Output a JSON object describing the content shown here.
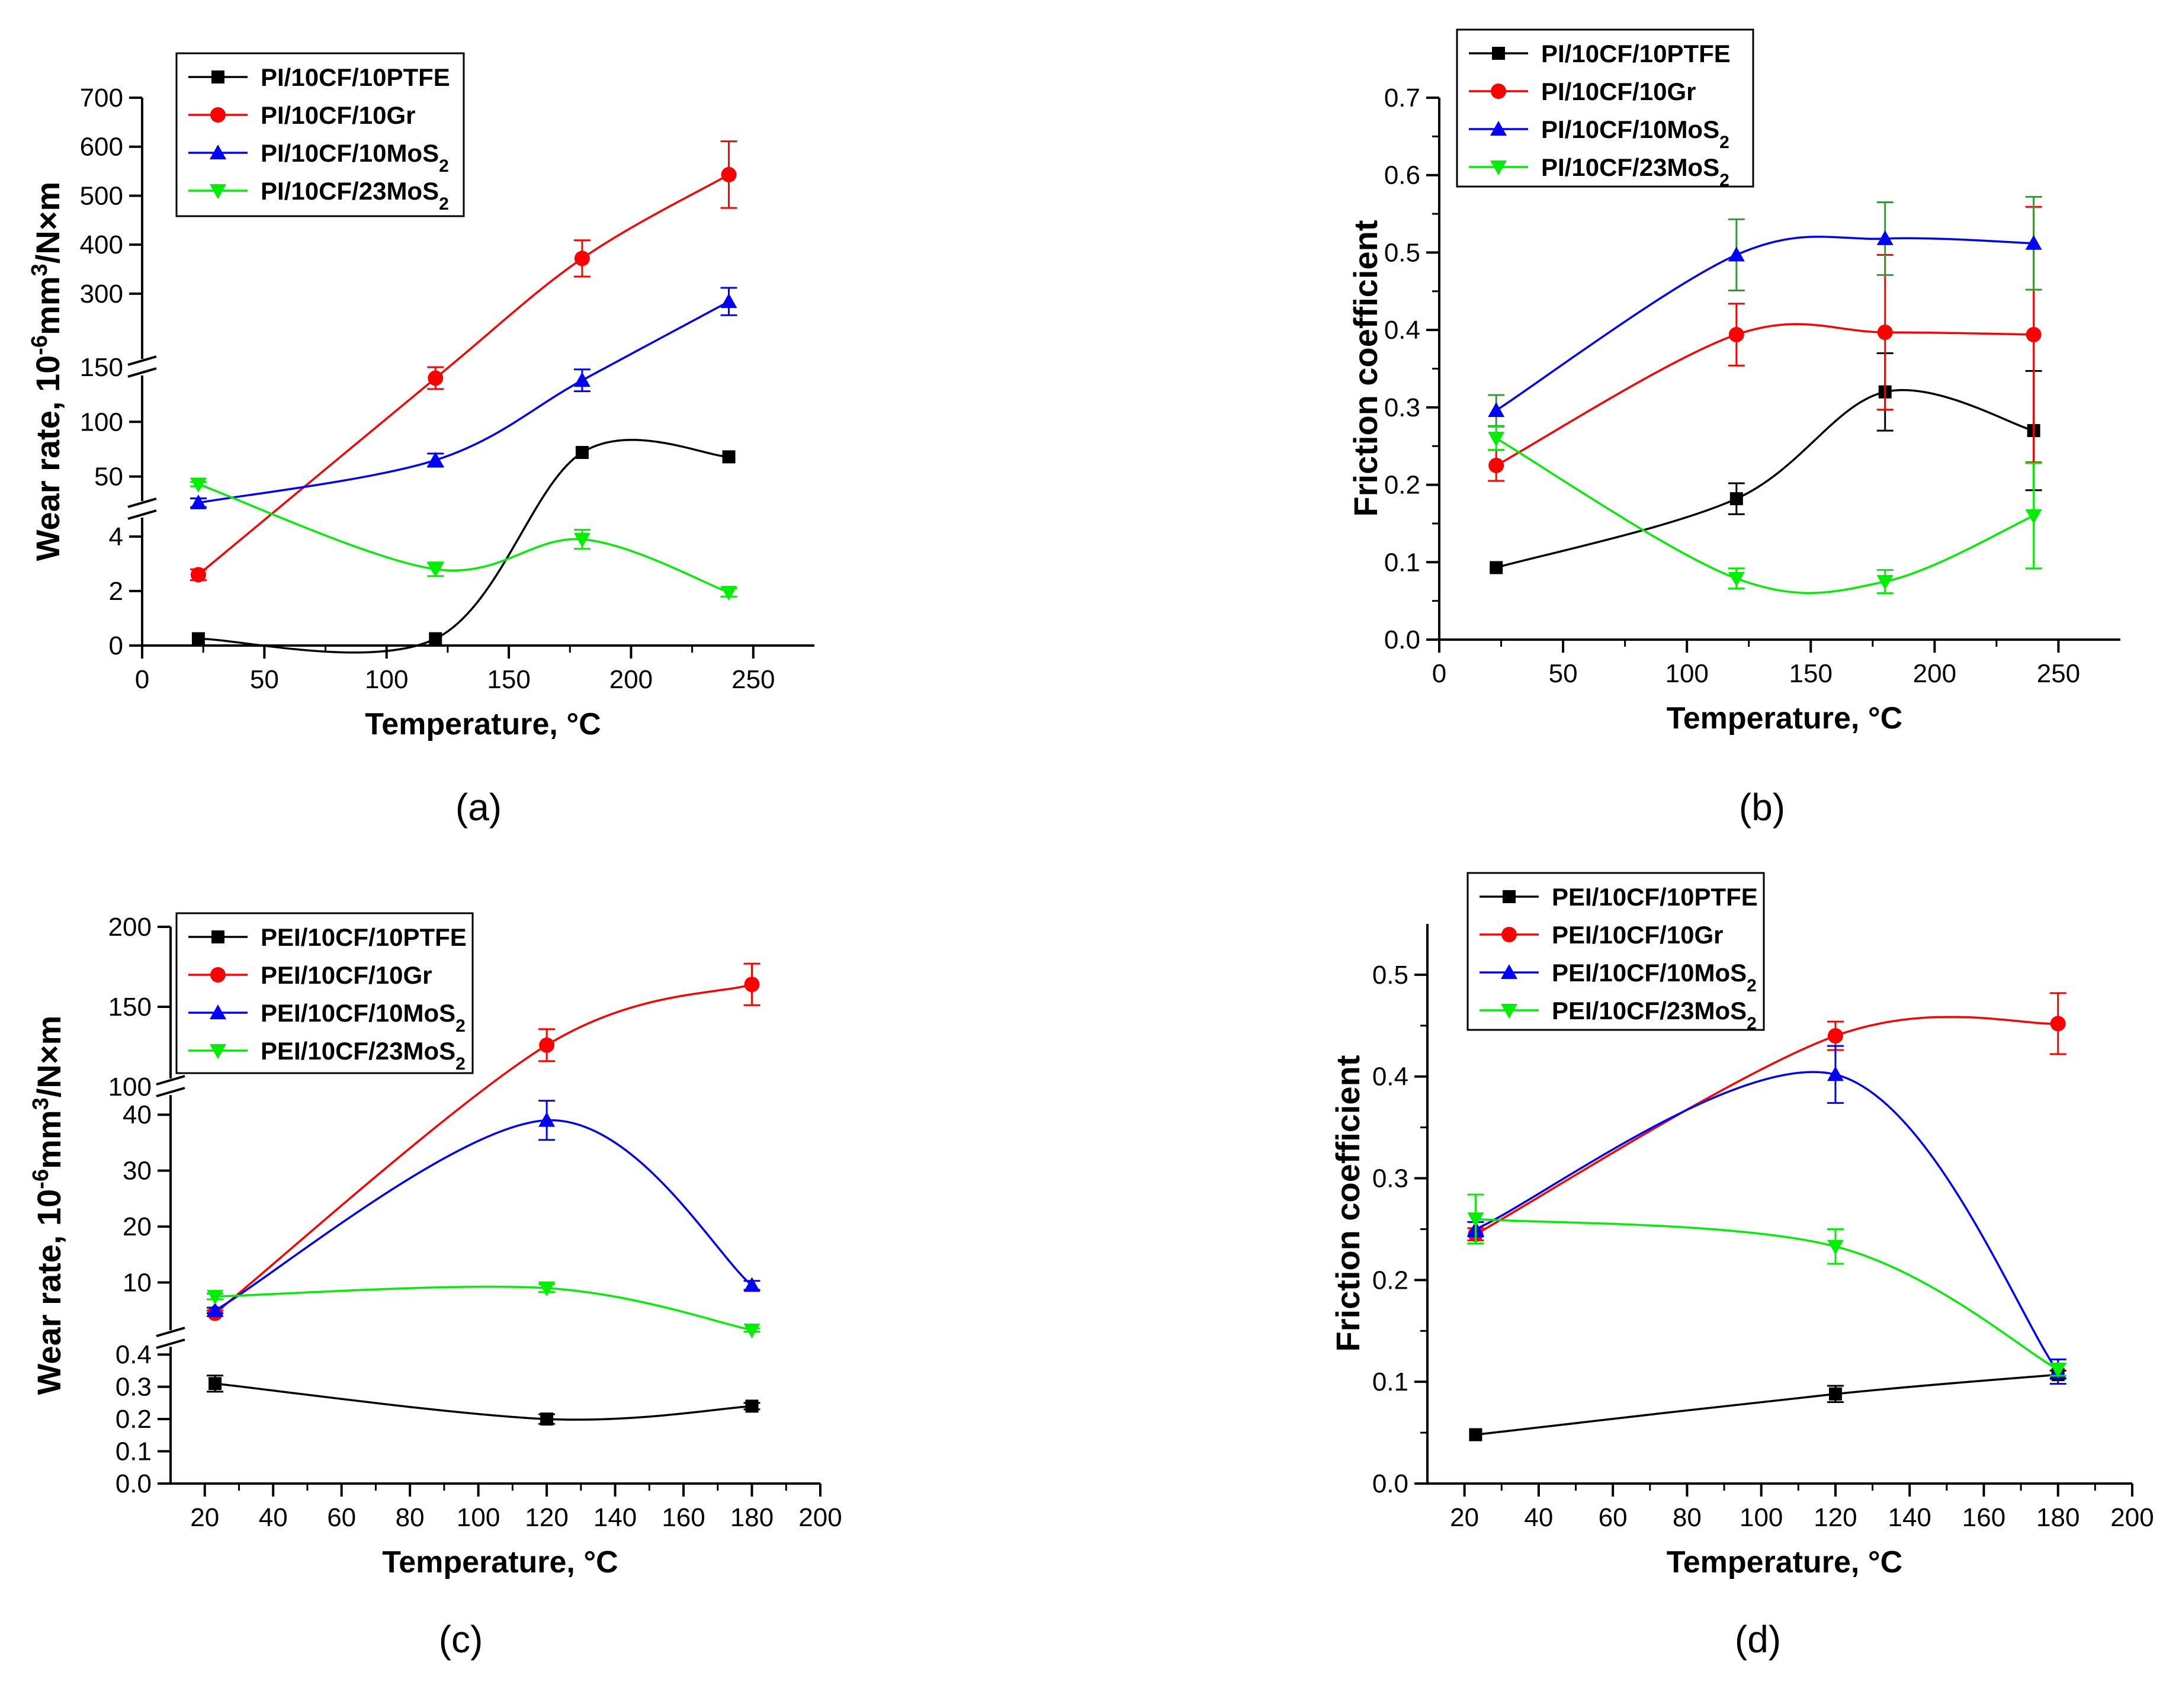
{
  "panel_labels": [
    "(a)",
    "(b)",
    "(c)",
    "(d)"
  ],
  "colors": {
    "ptfe": "#000000",
    "gr": "#ff0000",
    "mos2_10": "#0000ff",
    "mos2_23": "#00ee00",
    "err_mos2_10_b": "#339933"
  },
  "chart_data": [
    {
      "id": "a",
      "type": "scatter",
      "x_label": "Temperature, °C",
      "y_label_parts": [
        "Wear rate, 10",
        "-6",
        "mm",
        "3",
        "/N×m"
      ],
      "xlim": [
        0,
        275
      ],
      "x_ticks": [
        "0",
        "50",
        "100",
        "150",
        "200",
        "250"
      ],
      "y_segments": [
        [
          0,
          5
        ],
        [
          20,
          150
        ],
        [
          150,
          700
        ]
      ],
      "y_ticks": [
        "0",
        "2",
        "4",
        "50",
        "100",
        "150",
        "300",
        "400",
        "500",
        "600",
        "700"
      ],
      "legend": "top-left",
      "series": [
        {
          "key": "ptfe",
          "name": "PI/10CF/10PTFE",
          "marker": "square",
          "x": [
            23,
            120,
            180,
            240
          ],
          "y": [
            0.25,
            0.25,
            72,
            68
          ],
          "err": [
            0,
            0,
            0,
            0
          ]
        },
        {
          "key": "gr",
          "name": "PI/10CF/10Gr",
          "marker": "circle",
          "x": [
            23,
            120,
            180,
            240
          ],
          "y": [
            2.6,
            140,
            372,
            543
          ],
          "err": [
            0.2,
            10,
            37,
            68
          ]
        },
        {
          "key": "mos2_10",
          "name": "PI/10CF/10MoS",
          "name_sub": "2",
          "marker": "triangle-up",
          "x": [
            23,
            120,
            180,
            240
          ],
          "y": [
            26,
            65,
            138,
            284
          ],
          "err": [
            4,
            6,
            10,
            28
          ]
        },
        {
          "key": "mos2_23",
          "name": "PI/10CF/23MoS",
          "name_sub": "2",
          "marker": "triangle-down",
          "x": [
            23,
            120,
            180,
            240
          ],
          "y": [
            43,
            2.8,
            3.9,
            1.95
          ],
          "err": [
            2,
            0.25,
            0.35,
            0.15
          ]
        }
      ]
    },
    {
      "id": "b",
      "type": "scatter",
      "x_label": "Temperature, °C",
      "y_label_parts": [
        "Friction coefficient"
      ],
      "xlim": [
        0,
        275
      ],
      "x_ticks": [
        "0",
        "50",
        "100",
        "150",
        "200",
        "250"
      ],
      "ylim": [
        0,
        0.7
      ],
      "y_ticks": [
        "0.0",
        "0.1",
        "0.2",
        "0.3",
        "0.4",
        "0.5",
        "0.6",
        "0.7"
      ],
      "legend": "top-left",
      "series": [
        {
          "key": "ptfe",
          "name": "PI/10CF/10PTFE",
          "marker": "square",
          "x": [
            23,
            120,
            180,
            240
          ],
          "y": [
            0.093,
            0.182,
            0.32,
            0.27
          ],
          "err": [
            0,
            0.02,
            0.05,
            0.077
          ]
        },
        {
          "key": "gr",
          "name": "PI/10CF/10Gr",
          "marker": "circle",
          "x": [
            23,
            120,
            180,
            240
          ],
          "y": [
            0.225,
            0.394,
            0.397,
            0.394
          ],
          "err": [
            0.02,
            0.04,
            0.1,
            0.165
          ]
        },
        {
          "key": "mos2_10",
          "name": "PI/10CF/10MoS",
          "name_sub": "2",
          "marker": "triangle-up",
          "x": [
            23,
            120,
            180,
            240
          ],
          "y": [
            0.296,
            0.497,
            0.518,
            0.512
          ],
          "err": [
            0.02,
            0.046,
            0.047,
            0.06
          ]
        },
        {
          "key": "mos2_23",
          "name": "PI/10CF/23MoS",
          "name_sub": "2",
          "marker": "triangle-down",
          "x": [
            23,
            120,
            180,
            240
          ],
          "y": [
            0.26,
            0.079,
            0.075,
            0.16
          ],
          "err": [
            0.015,
            0.013,
            0.015,
            0.068
          ]
        }
      ]
    },
    {
      "id": "c",
      "type": "scatter",
      "x_label": "Temperature, °C",
      "y_label_parts": [
        "Wear rate, 10",
        "-6",
        "mm",
        "3",
        "/N×m"
      ],
      "xlim": [
        10,
        200
      ],
      "x_ticks": [
        "20",
        "40",
        "60",
        "80",
        "100",
        "120",
        "140",
        "160",
        "180",
        "200"
      ],
      "y_segments": [
        [
          0,
          0.45
        ],
        [
          0,
          45
        ],
        [
          100,
          200
        ]
      ],
      "y_ticks": [
        "0.0",
        "0.1",
        "0.2",
        "0.3",
        "0.4",
        "10",
        "20",
        "30",
        "40",
        "100",
        "150",
        "200"
      ],
      "legend": "top-left",
      "series": [
        {
          "key": "ptfe",
          "name": "PEI/10CF/10PTFE",
          "marker": "square",
          "x": [
            23,
            120,
            180
          ],
          "y": [
            0.31,
            0.2,
            0.24
          ],
          "err": [
            0.025,
            0.015,
            0.01
          ]
        },
        {
          "key": "gr",
          "name": "PEI/10CF/10Gr",
          "marker": "circle",
          "x": [
            23,
            120,
            180
          ],
          "y": [
            4.5,
            126,
            164
          ],
          "err": [
            0.5,
            10,
            13
          ]
        },
        {
          "key": "mos2_10",
          "name": "PEI/10CF/10MoS",
          "name_sub": "2",
          "marker": "triangle-up",
          "x": [
            23,
            120,
            180
          ],
          "y": [
            5,
            39,
            9.5
          ],
          "err": [
            0.5,
            3.5,
            0.8
          ]
        },
        {
          "key": "mos2_23",
          "name": "PEI/10CF/23MoS",
          "name_sub": "2",
          "marker": "triangle-down",
          "x": [
            23,
            120,
            180
          ],
          "y": [
            7.5,
            9,
            1.5
          ],
          "err": [
            0.5,
            0.7,
            0.3
          ]
        }
      ]
    },
    {
      "id": "d",
      "type": "scatter",
      "x_label": "Temperature, °C",
      "y_label_parts": [
        "Friction coefficient"
      ],
      "xlim": [
        10,
        200
      ],
      "x_ticks": [
        "20",
        "40",
        "60",
        "80",
        "100",
        "120",
        "140",
        "160",
        "180",
        "200"
      ],
      "ylim": [
        0,
        0.55
      ],
      "y_ticks": [
        "0.0",
        "0.1",
        "0.2",
        "0.3",
        "0.4",
        "0.5"
      ],
      "legend": "top-left",
      "series": [
        {
          "key": "ptfe",
          "name": "PEI/10CF/10PTFE",
          "marker": "square",
          "x": [
            23,
            120,
            180
          ],
          "y": [
            0.048,
            0.088,
            0.107
          ],
          "err": [
            0,
            0.008,
            0.004
          ]
        },
        {
          "key": "gr",
          "name": "PEI/10CF/10Gr",
          "marker": "circle",
          "x": [
            23,
            120,
            180
          ],
          "y": [
            0.245,
            0.44,
            0.452
          ],
          "err": [
            0.006,
            0.014,
            0.03
          ]
        },
        {
          "key": "mos2_10",
          "name": "PEI/10CF/10MoS",
          "name_sub": "2",
          "marker": "triangle-up",
          "x": [
            23,
            120,
            180
          ],
          "y": [
            0.25,
            0.402,
            0.11
          ],
          "err": [
            0.007,
            0.028,
            0.012
          ]
        },
        {
          "key": "mos2_23",
          "name": "PEI/10CF/23MoS",
          "name_sub": "2",
          "marker": "triangle-down",
          "x": [
            23,
            120,
            180
          ],
          "y": [
            0.26,
            0.233,
            0.112
          ],
          "err": [
            0.024,
            0.017,
            0.006
          ]
        }
      ]
    }
  ]
}
